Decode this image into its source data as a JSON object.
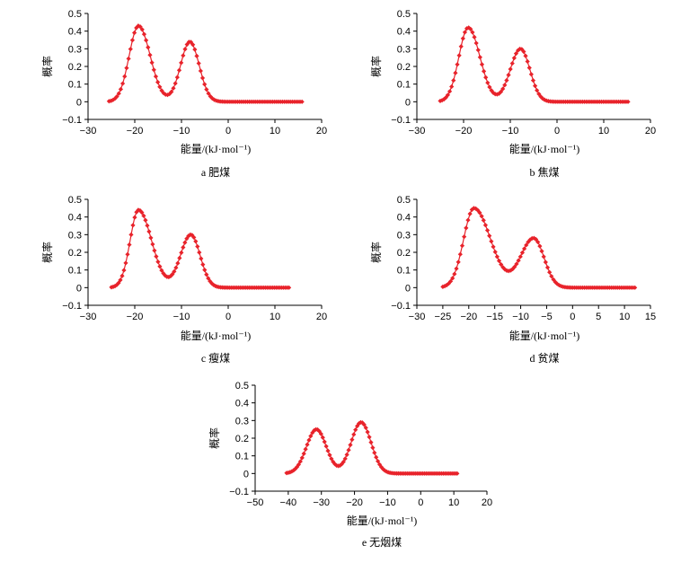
{
  "chart_data": [
    {
      "id": "a",
      "type": "line",
      "caption": "a  肥煤",
      "xlabel": "能量/(kJ·mol⁻¹)",
      "ylabel": "概率",
      "xlim": [
        -30,
        20
      ],
      "ylim": [
        -0.1,
        0.5
      ],
      "xticks": [
        -30,
        -20,
        -10,
        0,
        10,
        20
      ],
      "yticks": [
        -0.1,
        0,
        0.1,
        0.2,
        0.3,
        0.4,
        0.5
      ],
      "range": [
        -25.5,
        15.8
      ],
      "peaks": [
        {
          "mu": -19.2,
          "a": 0.43,
          "sl": 2.0,
          "sr": 2.5
        },
        {
          "mu": -8.2,
          "a": 0.34,
          "sl": 2.0,
          "sr": 2.0
        }
      ],
      "tail": 0.0,
      "color": "#e8232b"
    },
    {
      "id": "b",
      "type": "line",
      "caption": "b  焦煤",
      "xlabel": "能量/(kJ·mol⁻¹)",
      "ylabel": "概率",
      "xlim": [
        -30,
        20
      ],
      "ylim": [
        -0.1,
        0.5
      ],
      "xticks": [
        -30,
        -20,
        -10,
        0,
        10,
        20
      ],
      "yticks": [
        -0.1,
        0,
        0.1,
        0.2,
        0.3,
        0.4,
        0.5
      ],
      "range": [
        -25.0,
        15.2
      ],
      "peaks": [
        {
          "mu": -19.0,
          "a": 0.42,
          "sl": 2.0,
          "sr": 2.5
        },
        {
          "mu": -7.8,
          "a": 0.3,
          "sl": 2.2,
          "sr": 2.0
        }
      ],
      "tail": 0.0,
      "color": "#e8232b"
    },
    {
      "id": "c",
      "type": "line",
      "caption": "c  瘦煤",
      "xlabel": "能量/(kJ·mol⁻¹)",
      "ylabel": "概率",
      "xlim": [
        -30,
        20
      ],
      "ylim": [
        -0.1,
        0.5
      ],
      "xticks": [
        -30,
        -20,
        -10,
        0,
        10,
        20
      ],
      "yticks": [
        -0.1,
        0,
        0.1,
        0.2,
        0.3,
        0.4,
        0.5
      ],
      "range": [
        -25.0,
        13.0
      ],
      "peaks": [
        {
          "mu": -19.2,
          "a": 0.44,
          "sl": 1.8,
          "sr": 2.8
        },
        {
          "mu": -8.0,
          "a": 0.3,
          "sl": 2.2,
          "sr": 2.0
        }
      ],
      "tail": 0.0,
      "color": "#e8232b"
    },
    {
      "id": "d",
      "type": "line",
      "caption": "d  贫煤",
      "xlabel": "能量/(kJ·mol⁻¹)",
      "ylabel": "概率",
      "xlim": [
        -30,
        15
      ],
      "ylim": [
        -0.1,
        0.5
      ],
      "xticks": [
        -30,
        -25,
        -20,
        -15,
        -10,
        -5,
        0,
        5,
        10,
        15
      ],
      "yticks": [
        -0.1,
        0,
        0.1,
        0.2,
        0.3,
        0.4,
        0.5
      ],
      "range": [
        -25.0,
        12.0
      ],
      "peaks": [
        {
          "mu": -19.0,
          "a": 0.45,
          "sl": 2.0,
          "sr": 3.2
        },
        {
          "mu": -7.5,
          "a": 0.28,
          "sl": 2.5,
          "sr": 2.0
        }
      ],
      "tail": 0.0,
      "color": "#e8232b"
    },
    {
      "id": "e",
      "type": "line",
      "caption": "e  无烟煤",
      "xlabel": "能量/(kJ·mol⁻¹)",
      "ylabel": "概率",
      "xlim": [
        -50,
        20
      ],
      "ylim": [
        -0.1,
        0.5
      ],
      "xticks": [
        -50,
        -40,
        -30,
        -20,
        -10,
        0,
        10,
        20
      ],
      "yticks": [
        -0.1,
        0,
        0.1,
        0.2,
        0.3,
        0.4,
        0.5
      ],
      "range": [
        -40.5,
        11.0
      ],
      "peaks": [
        {
          "mu": -31.5,
          "a": 0.25,
          "sl": 3.0,
          "sr": 3.0
        },
        {
          "mu": -18.0,
          "a": 0.29,
          "sl": 3.0,
          "sr": 3.0
        }
      ],
      "tail": 0.0,
      "color": "#e8232b"
    }
  ]
}
